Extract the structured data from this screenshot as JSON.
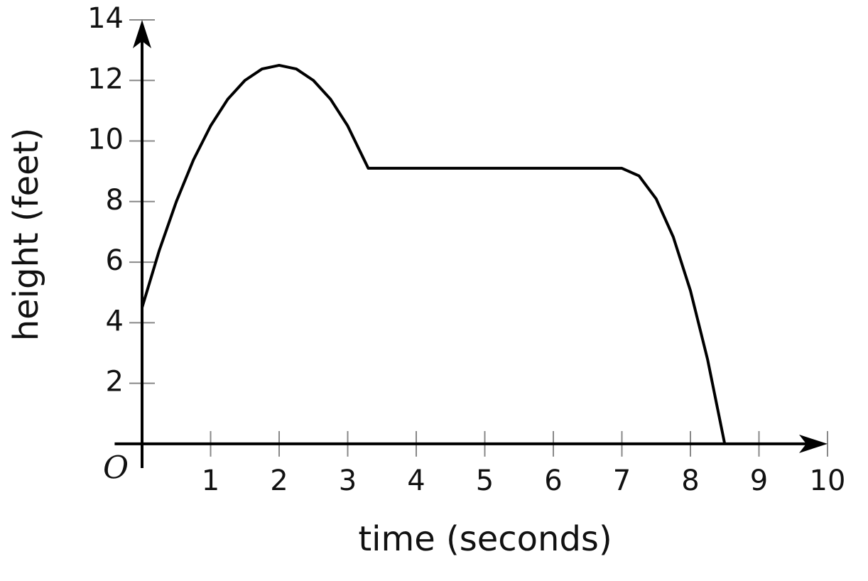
{
  "chart_data": {
    "type": "line",
    "x_label": "time (seconds)",
    "y_label": "height (feet)",
    "origin_label": "O",
    "x": [
      0,
      0.25,
      0.5,
      0.75,
      1,
      1.25,
      1.5,
      1.75,
      2,
      2.25,
      2.5,
      2.75,
      3,
      3.3,
      7,
      7.25,
      7.5,
      7.75,
      8,
      8.25,
      8.5
    ],
    "series": [
      {
        "color": "#000000",
        "values": [
          4.5,
          6.38,
          8.0,
          9.38,
          10.5,
          11.38,
          12.0,
          12.38,
          12.5,
          12.38,
          12.0,
          11.38,
          10.5,
          9.1,
          9.1,
          8.85,
          8.09,
          6.83,
          5.06,
          2.79,
          0
        ]
      }
    ],
    "xlim": [
      -0.4,
      10
    ],
    "ylim": [
      -0.8,
      14
    ],
    "xticks": [
      1,
      2,
      3,
      4,
      5,
      6,
      7,
      8,
      9,
      10
    ],
    "yticks": [
      2,
      4,
      6,
      8,
      10,
      12,
      14
    ]
  }
}
